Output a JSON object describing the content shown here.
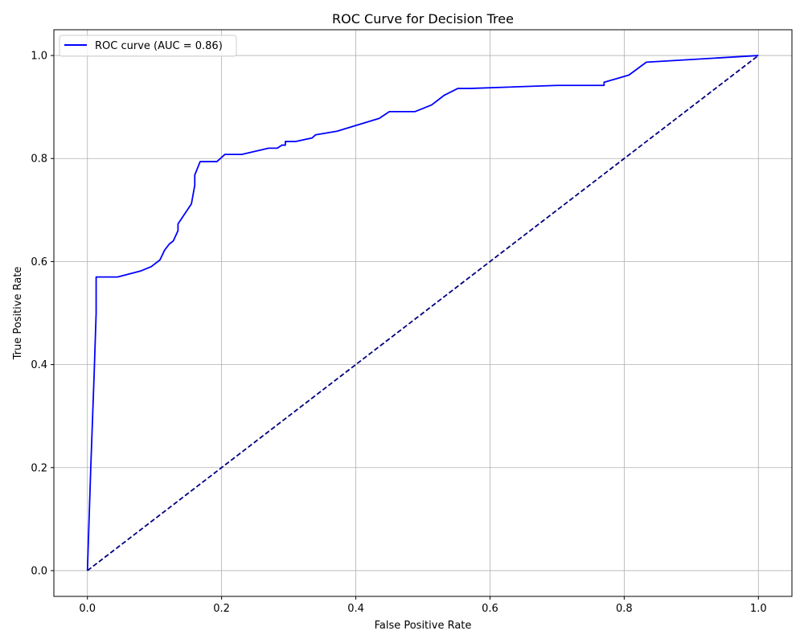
{
  "chart_data": {
    "type": "line",
    "title": "ROC Curve for Decision Tree",
    "xlabel": "False Positive Rate",
    "ylabel": "True Positive Rate",
    "xlim": [
      -0.05,
      1.05
    ],
    "ylim": [
      -0.05,
      1.05
    ],
    "xticks": [
      0.0,
      0.2,
      0.4,
      0.6,
      0.8,
      1.0
    ],
    "yticks": [
      0.0,
      0.2,
      0.4,
      0.6,
      0.8,
      1.0
    ],
    "xtick_labels": [
      "0.0",
      "0.2",
      "0.4",
      "0.6",
      "0.8",
      "1.0"
    ],
    "ytick_labels": [
      "0.0",
      "0.2",
      "0.4",
      "0.6",
      "0.8",
      "1.0"
    ],
    "grid": true,
    "legend_position": "upper-left",
    "series": [
      {
        "name": "ROC curve (AUC = 0.86)",
        "color": "#0000ff",
        "style": "solid",
        "x": [
          0.0,
          0.005,
          0.01,
          0.013,
          0.013,
          0.045,
          0.08,
          0.095,
          0.108,
          0.115,
          0.122,
          0.128,
          0.135,
          0.135,
          0.155,
          0.16,
          0.16,
          0.168,
          0.193,
          0.205,
          0.23,
          0.27,
          0.283,
          0.29,
          0.295,
          0.295,
          0.31,
          0.335,
          0.34,
          0.372,
          0.435,
          0.45,
          0.488,
          0.513,
          0.532,
          0.552,
          0.57,
          0.7,
          0.77,
          0.77,
          0.807,
          0.833,
          1.0
        ],
        "y": [
          0.0,
          0.2,
          0.38,
          0.5,
          0.57,
          0.57,
          0.582,
          0.59,
          0.603,
          0.622,
          0.634,
          0.64,
          0.66,
          0.673,
          0.712,
          0.748,
          0.768,
          0.794,
          0.794,
          0.808,
          0.808,
          0.82,
          0.82,
          0.826,
          0.826,
          0.833,
          0.833,
          0.84,
          0.846,
          0.853,
          0.878,
          0.891,
          0.891,
          0.904,
          0.923,
          0.936,
          0.936,
          0.942,
          0.942,
          0.948,
          0.962,
          0.987,
          1.0
        ]
      },
      {
        "color": "#000080",
        "style": "dashed",
        "x": [
          0.0,
          1.0
        ],
        "y": [
          0.0,
          1.0
        ]
      }
    ]
  }
}
